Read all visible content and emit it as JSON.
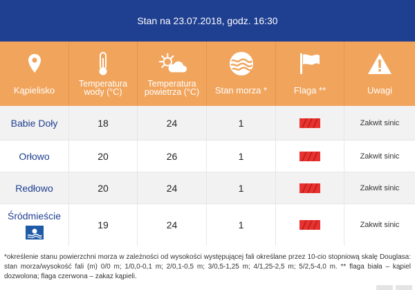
{
  "header": {
    "title": "Stan na 23.07.2018, godz. 16:30"
  },
  "columns": [
    {
      "label_line1": "Kąpielisko",
      "label_line2": "",
      "icon": "location-pin-icon"
    },
    {
      "label_line1": "Temperatura",
      "label_line2": "wody (°C)",
      "icon": "thermometer-icon"
    },
    {
      "label_line1": "Temperatura",
      "label_line2": "powietrza (°C)",
      "icon": "sun-cloud-icon"
    },
    {
      "label_line1": "Stan morza *",
      "label_line2": "",
      "icon": "waves-icon"
    },
    {
      "label_line1": "Flaga **",
      "label_line2": "",
      "icon": "flag-icon"
    },
    {
      "label_line1": "Uwagi",
      "label_line2": "",
      "icon": "warning-icon"
    }
  ],
  "rows": [
    {
      "name": "Babie Doły",
      "water": "18",
      "air": "24",
      "sea": "1",
      "flag": "red",
      "note": "Zakwit sinic"
    },
    {
      "name": "Orłowo",
      "water": "20",
      "air": "26",
      "sea": "1",
      "flag": "red",
      "note": "Zakwit sinic"
    },
    {
      "name": "Redłowo",
      "water": "20",
      "air": "24",
      "sea": "1",
      "flag": "red",
      "note": "Zakwit sinic"
    },
    {
      "name": "Śródmieście",
      "water": "19",
      "air": "24",
      "sea": "1",
      "flag": "red",
      "note": "Zakwit sinic",
      "badge": "blue-flag-icon"
    }
  ],
  "footnote": "*określenie stanu powierzchni morza w zależności od wysokości występującej fali określane przez 10-cio stopniową skalę Douglasa: stan morza/wysokość fali (m) 0/0 m; 1/0,0-0,1 m; 2/0,1-0,5 m; 3/0,5-1,25 m; 4/1,25-2,5 m; 5/2,5-4,0 m. ** flaga biała – kąpiel dozwolona; flaga czerwona – zakaz kąpieli.",
  "colors": {
    "header_bg": "#1f3f91",
    "columns_bg": "#f1a45c",
    "flag_red": "#e8322f",
    "link": "#1f3f91"
  }
}
